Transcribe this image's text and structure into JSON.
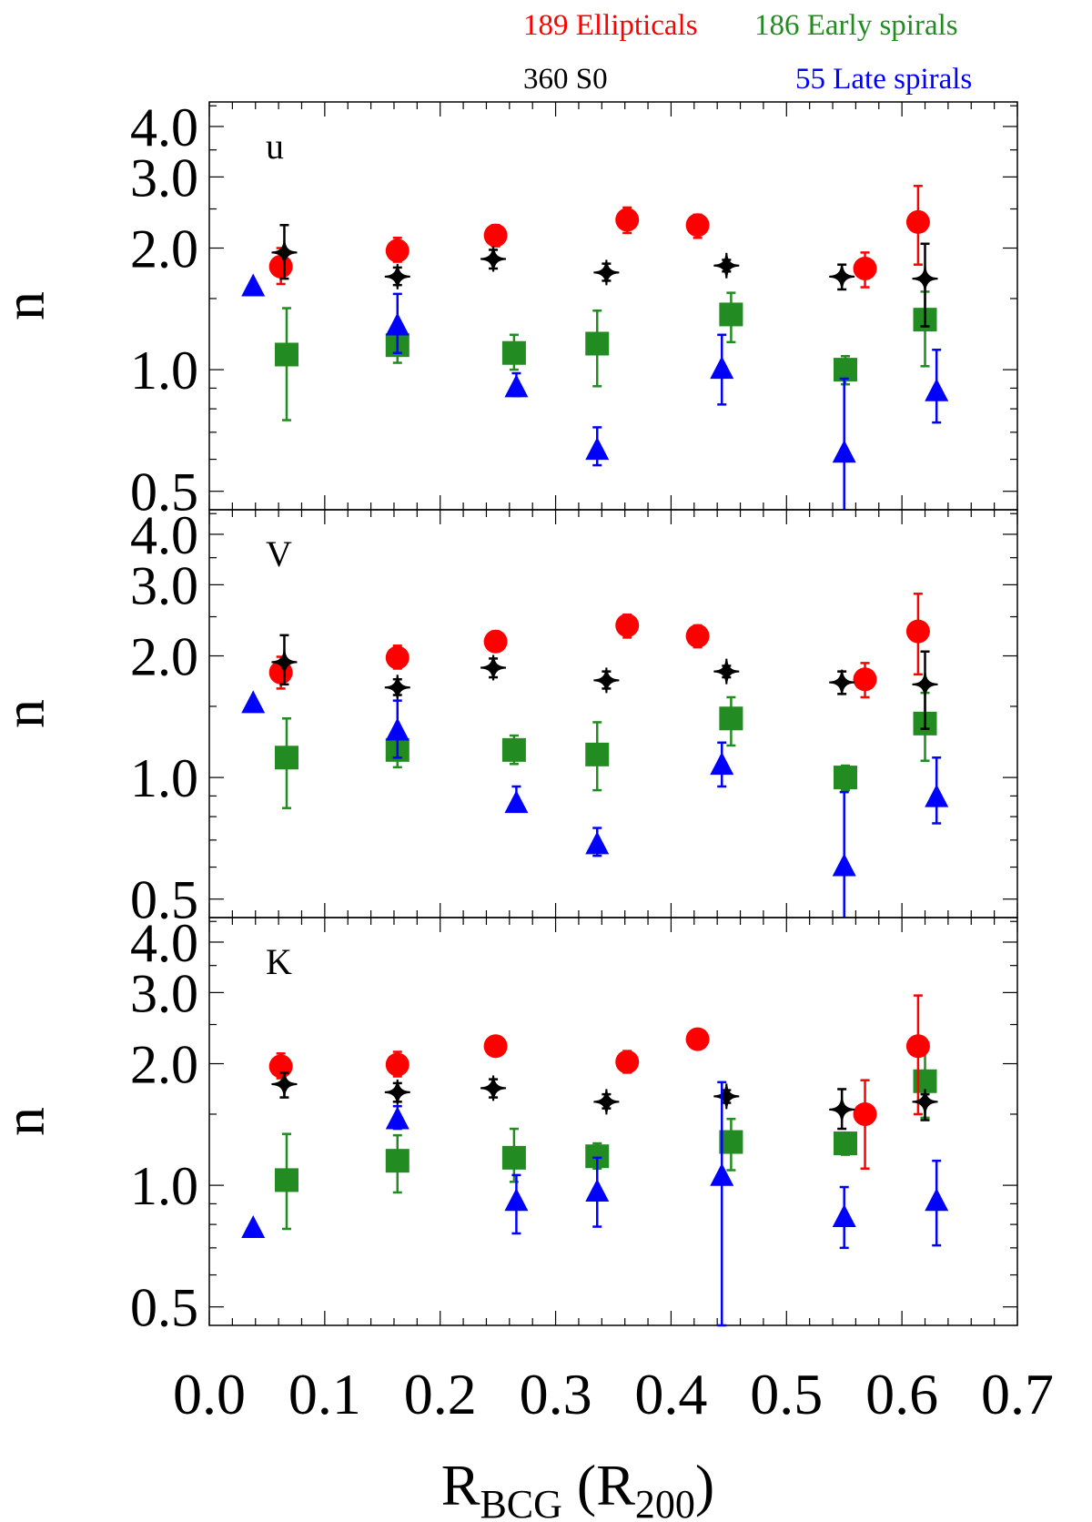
{
  "chart_data": {
    "type": "scatter",
    "xlabel": {
      "main": "R",
      "sub": "BCG",
      "open": " (R",
      "sub2": "200",
      "close": ")"
    },
    "ylabel": "n",
    "xlim": [
      0.0,
      0.7
    ],
    "ylim": [
      0.45,
      4.6
    ],
    "yscale": "log",
    "xticks": [
      "0.0",
      "0.1",
      "0.2",
      "0.3",
      "0.4",
      "0.5",
      "0.6",
      "0.7"
    ],
    "yticks": [
      "0.5",
      "1.0",
      "2.0",
      "3.0",
      "4.0"
    ],
    "legend_placement": "top",
    "series_info": [
      {
        "key": "ell",
        "label": "189 Ellipticals",
        "color": "#ff0000",
        "marker": "circle"
      },
      {
        "key": "early",
        "label": "186 Early spirals",
        "color": "#228b22",
        "marker": "square"
      },
      {
        "key": "s0",
        "label": "360 S0",
        "color": "#000000",
        "marker": "star"
      },
      {
        "key": "late",
        "label": "55 Late spirals",
        "color": "#0000ff",
        "marker": "triangle"
      }
    ],
    "panels": [
      {
        "label": "u",
        "series": {
          "ell": [
            [
              0.062,
              1.8,
              1.63,
              2.0
            ],
            [
              0.163,
              1.97,
              1.85,
              2.12
            ],
            [
              0.248,
              2.15,
              2.02,
              2.28
            ],
            [
              0.362,
              2.35,
              2.18,
              2.52
            ],
            [
              0.423,
              2.28,
              2.12,
              2.42
            ],
            [
              0.568,
              1.78,
              1.6,
              1.95
            ],
            [
              0.614,
              2.32,
              1.82,
              2.85
            ]
          ],
          "early": [
            [
              0.067,
              1.09,
              0.75,
              1.42
            ],
            [
              0.163,
              1.15,
              1.04,
              1.24
            ],
            [
              0.264,
              1.1,
              1.0,
              1.22
            ],
            [
              0.336,
              1.16,
              0.91,
              1.4
            ],
            [
              0.452,
              1.37,
              1.17,
              1.55
            ],
            [
              0.551,
              1.0,
              0.92,
              1.08
            ],
            [
              0.62,
              1.33,
              1.02,
              1.56
            ]
          ],
          "s0": [
            [
              0.065,
              1.95,
              1.68,
              2.28
            ],
            [
              0.163,
              1.7,
              1.62,
              1.79
            ],
            [
              0.246,
              1.88,
              1.78,
              1.98
            ],
            [
              0.344,
              1.74,
              1.66,
              1.83
            ],
            [
              0.448,
              1.81,
              1.75,
              1.87
            ],
            [
              0.548,
              1.7,
              1.58,
              1.82
            ],
            [
              0.62,
              1.68,
              1.28,
              2.05
            ]
          ],
          "late": [
            [
              0.038,
              1.6,
              null,
              null
            ],
            [
              0.163,
              1.28,
              1.1,
              1.54
            ],
            [
              0.266,
              0.9,
              0.86,
              0.98
            ],
            [
              0.336,
              0.63,
              0.58,
              0.72
            ],
            [
              0.444,
              1.0,
              0.82,
              1.22
            ],
            [
              0.55,
              0.62,
              0.4,
              0.95
            ],
            [
              0.63,
              0.88,
              0.74,
              1.12
            ]
          ]
        }
      },
      {
        "label": "V",
        "series": {
          "ell": [
            [
              0.062,
              1.82,
              1.66,
              1.99
            ],
            [
              0.163,
              1.98,
              1.86,
              2.12
            ],
            [
              0.248,
              2.17,
              2.05,
              2.3
            ],
            [
              0.362,
              2.38,
              2.22,
              2.53
            ],
            [
              0.423,
              2.24,
              2.1,
              2.38
            ],
            [
              0.568,
              1.75,
              1.58,
              1.92
            ],
            [
              0.614,
              2.3,
              1.8,
              2.85
            ]
          ],
          "early": [
            [
              0.067,
              1.12,
              0.84,
              1.4
            ],
            [
              0.163,
              1.17,
              1.06,
              1.26
            ],
            [
              0.264,
              1.17,
              1.08,
              1.27
            ],
            [
              0.336,
              1.14,
              0.93,
              1.37
            ],
            [
              0.452,
              1.4,
              1.2,
              1.58
            ],
            [
              0.551,
              1.0,
              0.93,
              1.07
            ],
            [
              0.62,
              1.36,
              1.1,
              1.62
            ]
          ],
          "s0": [
            [
              0.065,
              1.93,
              1.7,
              2.25
            ],
            [
              0.163,
              1.67,
              1.6,
              1.75
            ],
            [
              0.246,
              1.87,
              1.77,
              1.97
            ],
            [
              0.344,
              1.74,
              1.66,
              1.83
            ],
            [
              0.448,
              1.83,
              1.77,
              1.89
            ],
            [
              0.548,
              1.72,
              1.61,
              1.83
            ],
            [
              0.62,
              1.7,
              1.32,
              2.05
            ]
          ],
          "late": [
            [
              0.038,
              1.52,
              null,
              null
            ],
            [
              0.163,
              1.3,
              1.12,
              1.55
            ],
            [
              0.266,
              0.86,
              0.83,
              0.95
            ],
            [
              0.336,
              0.68,
              0.64,
              0.75
            ],
            [
              0.444,
              1.07,
              0.95,
              1.22
            ],
            [
              0.55,
              0.6,
              0.4,
              0.92
            ],
            [
              0.63,
              0.89,
              0.77,
              1.12
            ]
          ]
        }
      },
      {
        "label": "K",
        "series": {
          "ell": [
            [
              0.062,
              1.97,
              1.84,
              2.12
            ],
            [
              0.163,
              1.99,
              1.86,
              2.14
            ],
            [
              0.248,
              2.21,
              2.1,
              2.34
            ],
            [
              0.362,
              2.02,
              1.9,
              2.15
            ],
            [
              0.423,
              2.3,
              2.18,
              2.42
            ],
            [
              0.568,
              1.5,
              1.1,
              1.82
            ],
            [
              0.614,
              2.21,
              1.5,
              2.95
            ]
          ],
          "early": [
            [
              0.067,
              1.03,
              0.78,
              1.34
            ],
            [
              0.163,
              1.15,
              0.96,
              1.33
            ],
            [
              0.264,
              1.17,
              1.02,
              1.38
            ],
            [
              0.336,
              1.18,
              1.1,
              1.27
            ],
            [
              0.452,
              1.28,
              1.09,
              1.46
            ],
            [
              0.551,
              1.27,
              1.19,
              1.35
            ],
            [
              0.62,
              1.81,
              1.47,
              2.25
            ]
          ],
          "s0": [
            [
              0.065,
              1.78,
              1.65,
              1.9
            ],
            [
              0.163,
              1.7,
              1.61,
              1.79
            ],
            [
              0.246,
              1.74,
              1.65,
              1.83
            ],
            [
              0.344,
              1.61,
              1.55,
              1.68
            ],
            [
              0.448,
              1.66,
              1.6,
              1.72
            ],
            [
              0.548,
              1.54,
              1.38,
              1.73
            ],
            [
              0.62,
              1.61,
              1.45,
              1.68
            ]
          ],
          "late": [
            [
              0.038,
              0.78,
              null,
              null
            ],
            [
              0.163,
              1.45,
              1.38,
              1.57
            ],
            [
              0.266,
              0.91,
              0.76,
              1.06
            ],
            [
              0.336,
              0.96,
              0.79,
              1.17
            ],
            [
              0.444,
              1.05,
              0.45,
              1.8
            ],
            [
              0.55,
              0.83,
              0.7,
              0.99
            ],
            [
              0.63,
              0.91,
              0.71,
              1.15
            ]
          ]
        }
      }
    ]
  }
}
